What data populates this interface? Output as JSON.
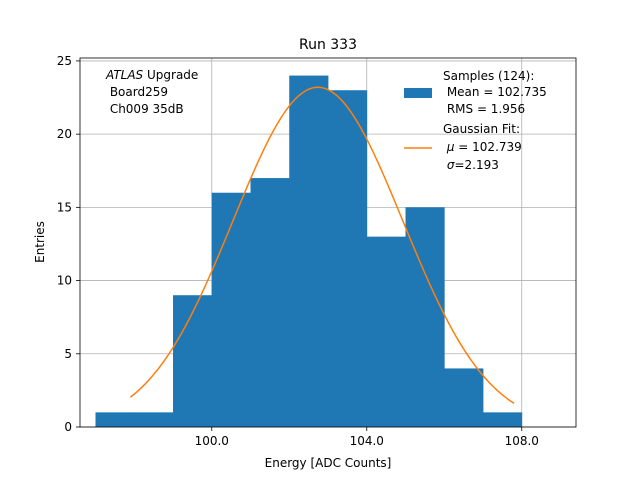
{
  "chart_data": {
    "type": "bar",
    "title": "Run 333",
    "xlabel": "Energy [ADC Counts]",
    "ylabel": "Entries",
    "xlim": [
      96.6,
      109.4
    ],
    "ylim": [
      0,
      25.2
    ],
    "grid": true,
    "xticks": [
      100.0,
      104.0,
      108.0
    ],
    "xtick_labels": [
      "100.0",
      "104.0",
      "108.0"
    ],
    "yticks": [
      0,
      5,
      10,
      15,
      20,
      25
    ],
    "ytick_labels": [
      "0",
      "5",
      "10",
      "15",
      "20",
      "25"
    ],
    "bin_edges": [
      97.0,
      98.0,
      99.0,
      100.0,
      101.0,
      102.0,
      103.0,
      104.0,
      105.0,
      106.0,
      107.0,
      108.0
    ],
    "counts": [
      1,
      1,
      9,
      16,
      17,
      24,
      23,
      13,
      15,
      4,
      1
    ],
    "fit": {
      "mu": 102.739,
      "sigma": 2.193,
      "amplitude": 23.2,
      "x_range": [
        97.9,
        107.8
      ]
    },
    "annotation": {
      "experiment": "ATLAS",
      "suffix": " Upgrade",
      "line2": " Board259",
      "line3": " Ch009 35dB"
    },
    "legend": {
      "position": "top-right",
      "hist_title": "Samples (124):",
      "hist_mean": " Mean = 102.735",
      "hist_rms": " RMS = 1.956",
      "fit_title": "Gaussian Fit:",
      "fit_mu": "= 102.739",
      "fit_sigma": "=2.193"
    },
    "colors": {
      "bars": "#1f77b4",
      "fit": "#ff7f0e",
      "grid": "#b0b0b0"
    }
  }
}
